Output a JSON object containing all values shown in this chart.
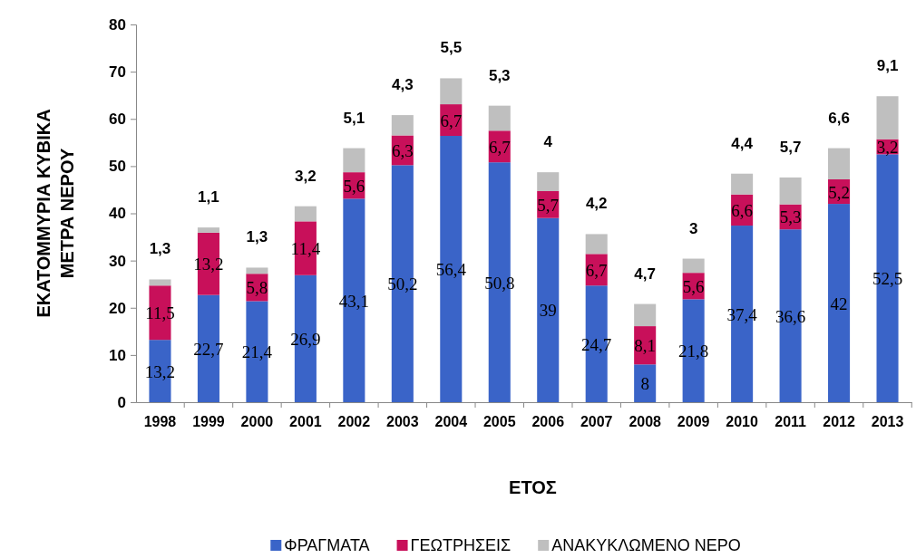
{
  "chart_data": {
    "type": "bar",
    "stacked": true,
    "ylabel": "ΕΚΑΤΟΜΜΥΡΙΑ ΚΥΒΙΚΑ ΜΕΤΡΑ ΝΕΡΟΥ",
    "xlabel": "ΕΤΟΣ",
    "categories": [
      "1998",
      "1999",
      "2000",
      "2001",
      "2002",
      "2003",
      "2004",
      "2005",
      "2006",
      "2007",
      "2008",
      "2009",
      "2010",
      "2011",
      "2012",
      "2013"
    ],
    "ylim": [
      0,
      80
    ],
    "yticks": [
      0,
      10,
      20,
      30,
      40,
      50,
      60,
      70,
      80
    ],
    "legend": "bottom",
    "series": [
      {
        "name": "ΦΡΑΓΜΑΤΑ",
        "color": "#3a64c8",
        "values": [
          13.2,
          22.7,
          21.4,
          26.9,
          43.1,
          50.2,
          56.4,
          50.8,
          39,
          24.7,
          8,
          21.8,
          37.4,
          36.6,
          42,
          52.5
        ],
        "value_labels": [
          "13,2",
          "22,7",
          "21,4",
          "26,9",
          "43,1",
          "50,2",
          "56,4",
          "50,8",
          "39",
          "24,7",
          "8",
          "21,8",
          "37,4",
          "36,6",
          "42",
          "52,5"
        ]
      },
      {
        "name": "ΓΕΩΤΡΗΣΕΙΣ",
        "color": "#c8105a",
        "values": [
          11.5,
          13.2,
          5.8,
          11.4,
          5.6,
          6.3,
          6.7,
          6.7,
          5.7,
          6.7,
          8.1,
          5.6,
          6.6,
          5.3,
          5.2,
          3.2
        ],
        "value_labels": [
          "11,5",
          "13,2",
          "5,8",
          "11,4",
          "5,6",
          "6,3",
          "6,7",
          "6,7",
          "5,7",
          "6,7",
          "8,1",
          "5,6",
          "6,6",
          "5,3",
          "5,2",
          "3,2"
        ]
      },
      {
        "name": "ΑΝΑΚΥΚΛΩΜΕΝΟ ΝΕΡΟ",
        "color": "#bfbfbf",
        "values": [
          1.3,
          1.1,
          1.3,
          3.2,
          5.1,
          4.3,
          5.5,
          5.3,
          4,
          4.2,
          4.7,
          3,
          4.4,
          5.7,
          6.6,
          9.1
        ],
        "value_labels": [
          "1,3",
          "1,1",
          "1,3",
          "3,2",
          "5,1",
          "4,3",
          "5,5",
          "5,3",
          "4",
          "4,2",
          "4,7",
          "3",
          "4,4",
          "5,7",
          "6,6",
          "9,1"
        ]
      }
    ]
  }
}
